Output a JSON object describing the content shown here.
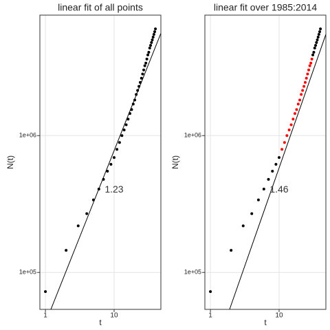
{
  "chart_data": [
    {
      "type": "scatter",
      "title": "linear fit of all points",
      "x_label": "t",
      "y_label": "N(t)",
      "log_x": true,
      "log_y": true,
      "grid": true,
      "point_color": "#000000",
      "line_color": "#000000",
      "xlim": [
        0.83,
        48
      ],
      "ylim": [
        53700,
        7600000
      ],
      "xticks": [
        1,
        10
      ],
      "yticks": [
        {
          "value": 100000,
          "label": "1e+05"
        },
        {
          "value": 1000000,
          "label": "1e+06"
        }
      ],
      "x": [
        1,
        2,
        3,
        4,
        5,
        6,
        7,
        8,
        9,
        10,
        11,
        12,
        13,
        14,
        15,
        16,
        17,
        18,
        19,
        20,
        21,
        22,
        23,
        24,
        25,
        26,
        27,
        28,
        29,
        30,
        31,
        32,
        33,
        34,
        35,
        36,
        37,
        38,
        39,
        40
      ],
      "y": [
        72400,
        145000,
        219000,
        269000,
        339000,
        407000,
        479000,
        550000,
        617000,
        692000,
        794000,
        891000,
        1000000,
        1100000,
        1200000,
        1320000,
        1450000,
        1550000,
        1700000,
        1820000,
        2000000,
        2140000,
        2290000,
        2450000,
        2630000,
        2820000,
        3020000,
        3240000,
        3390000,
        3630000,
        3890000,
        4070000,
        4370000,
        4570000,
        4790000,
        5010000,
        5250000,
        5500000,
        5750000,
        6030000
      ],
      "fit": {
        "x": [
          1.2,
          48
        ],
        "y": [
          53700,
          5600000
        ]
      },
      "annotation": {
        "text": "1.23",
        "x": 10,
        "y": 400000
      }
    },
    {
      "type": "scatter",
      "title": "linear fit over 1985:2014",
      "x_label": "t",
      "y_label": "N(t)",
      "log_x": true,
      "log_y": true,
      "grid": true,
      "line_color": "#000000",
      "xlim": [
        0.83,
        48
      ],
      "ylim": [
        53700,
        7600000
      ],
      "xticks": [
        1,
        10
      ],
      "yticks": [
        {
          "value": 100000,
          "label": "1e+05"
        },
        {
          "value": 1000000,
          "label": "1e+06"
        }
      ],
      "x": [
        1,
        2,
        3,
        4,
        5,
        6,
        7,
        8,
        9,
        10,
        11,
        12,
        13,
        14,
        15,
        16,
        17,
        18,
        19,
        20,
        21,
        22,
        23,
        24,
        25,
        26,
        27,
        28,
        29,
        30,
        31,
        32,
        33,
        34,
        35,
        36,
        37,
        38,
        39,
        40
      ],
      "y": [
        72400,
        145000,
        219000,
        269000,
        339000,
        407000,
        479000,
        550000,
        617000,
        692000,
        794000,
        891000,
        1000000,
        1100000,
        1200000,
        1320000,
        1450000,
        1550000,
        1700000,
        1820000,
        2000000,
        2140000,
        2290000,
        2450000,
        2630000,
        2820000,
        3020000,
        3240000,
        3390000,
        3630000,
        3890000,
        4070000,
        4370000,
        4570000,
        4790000,
        5010000,
        5250000,
        5500000,
        5750000,
        6030000
      ],
      "point_colors": [
        "#000000",
        "#000000",
        "#000000",
        "#000000",
        "#000000",
        "#000000",
        "#000000",
        "#000000",
        "#000000",
        "#000000",
        "#ff0000",
        "#ff0000",
        "#ff0000",
        "#ff0000",
        "#ff0000",
        "#ff0000",
        "#ff0000",
        "#ff0000",
        "#ff0000",
        "#ff0000",
        "#ff0000",
        "#ff0000",
        "#ff0000",
        "#ff0000",
        "#ff0000",
        "#ff0000",
        "#ff0000",
        "#ff0000",
        "#ff0000",
        "#ff0000",
        "#000000",
        "#000000",
        "#000000",
        "#000000",
        "#000000",
        "#000000",
        "#000000",
        "#000000",
        "#000000",
        "#000000"
      ],
      "fit": {
        "x": [
          1.9,
          48
        ],
        "y": [
          53700,
          5500000
        ]
      },
      "annotation": {
        "text": "1.46",
        "x": 10,
        "y": 400000
      }
    }
  ]
}
